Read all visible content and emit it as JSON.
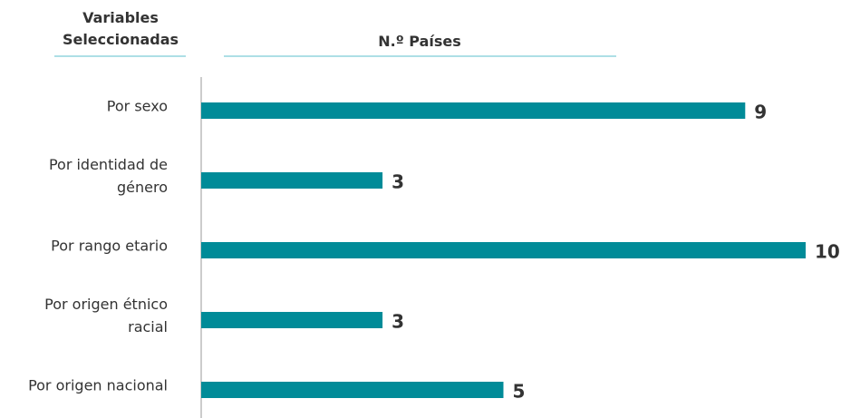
{
  "chart_data": {
    "type": "bar",
    "orientation": "horizontal",
    "category_header": "Variables\nSeleccionadas",
    "value_header": "N.º Países",
    "categories": [
      "Por sexo",
      "Por identidad de\ngénero",
      "Por rango etario",
      "Por origen étnico\nracial",
      "Por origen nacional"
    ],
    "values": [
      9,
      3,
      10,
      3,
      5
    ],
    "color": "#008b98",
    "xlim": [
      0,
      10
    ]
  }
}
